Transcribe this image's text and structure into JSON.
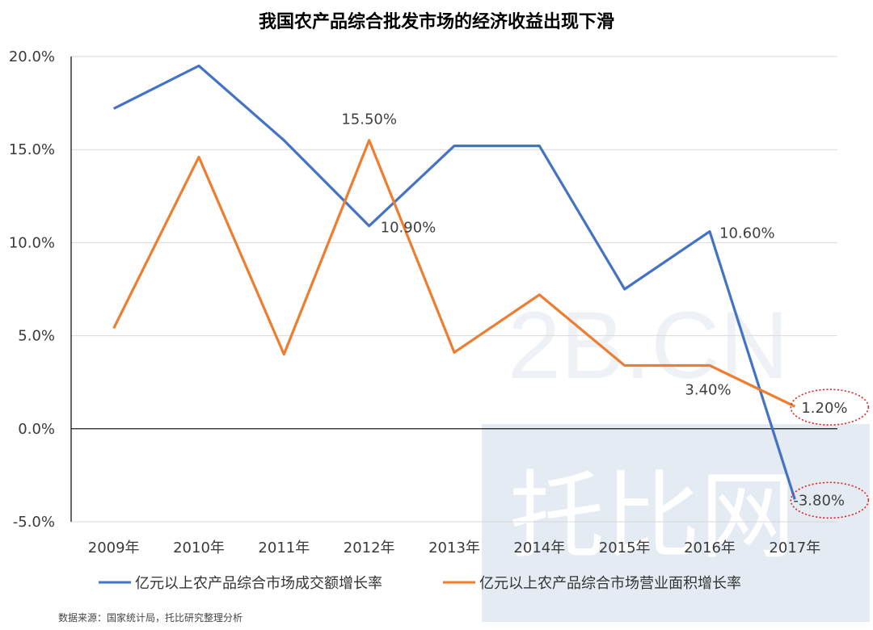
{
  "chart_data": {
    "type": "line",
    "title": "我国农产品综合批发市场的经济收益出现下滑",
    "categories": [
      "2009年",
      "2010年",
      "2011年",
      "2012年",
      "2013年",
      "2014年",
      "2015年",
      "2016年",
      "2017年"
    ],
    "ylim": [
      -5.0,
      20.0
    ],
    "yticks": [
      "20.0%",
      "15.0%",
      "10.0%",
      "5.0%",
      "0.0%",
      "-5.0%"
    ],
    "ytick_values": [
      20,
      15,
      10,
      5,
      0,
      -5
    ],
    "grid": true,
    "legend_position": "bottom",
    "series": [
      {
        "name": "亿元以上农产品综合市场成交额增长率",
        "color": "#4472C4",
        "values": [
          17.2,
          19.5,
          15.5,
          10.9,
          15.2,
          15.2,
          7.5,
          10.6,
          -3.8
        ]
      },
      {
        "name": "亿元以上农产品综合市场营业面积增长率",
        "color": "#ED7D31",
        "values": [
          5.4,
          14.6,
          4.0,
          15.5,
          4.1,
          7.2,
          3.4,
          3.4,
          1.2
        ]
      }
    ],
    "data_labels": [
      {
        "series": 1,
        "index": 3,
        "text": "15.50%"
      },
      {
        "series": 0,
        "index": 3,
        "text": "10.90%"
      },
      {
        "series": 0,
        "index": 7,
        "text": "10.60%"
      },
      {
        "series": 1,
        "index": 7,
        "text": "3.40%"
      },
      {
        "series": 1,
        "index": 8,
        "text": "1.20%"
      },
      {
        "series": 0,
        "index": 8,
        "text": "-3.80%"
      }
    ],
    "highlight_color": "#E02020"
  },
  "watermark": {
    "latin": "2B.CN",
    "cjk": "托比网"
  },
  "source": "数据来源：国家统计局，托比研究整理分析"
}
